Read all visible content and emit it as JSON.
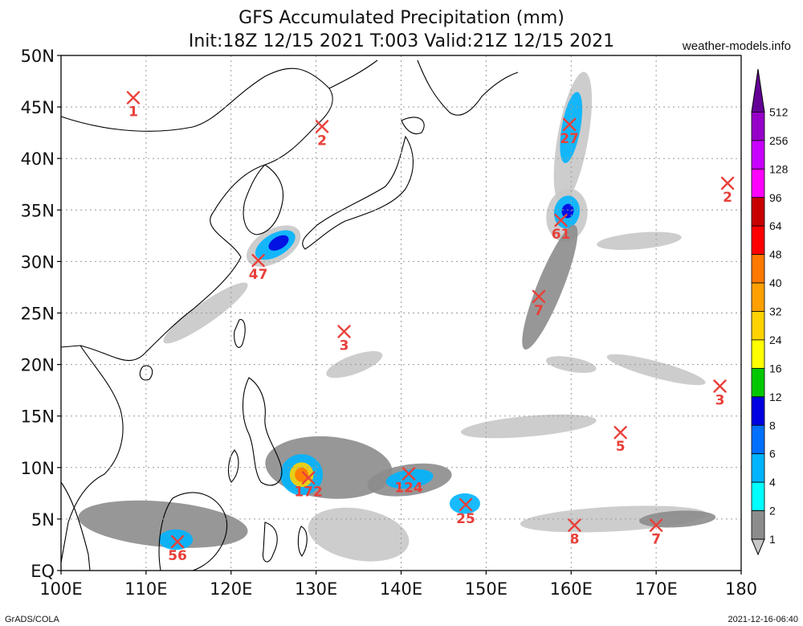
{
  "header": {
    "title": "GFS Accumulated Precipitation (mm)",
    "subtitle": "Init:18Z 12/15 2021 T:003 Valid:21Z 12/15 2021",
    "site": "weather-models.info"
  },
  "footer": {
    "left": "GrADS/COLA",
    "right": "2021-12-16-06:40"
  },
  "map": {
    "lon_range": [
      100,
      180
    ],
    "lat_range": [
      0,
      50
    ],
    "lat_labels": [
      "50N",
      "45N",
      "40N",
      "35N",
      "30N",
      "25N",
      "20N",
      "15N",
      "10N",
      "5N",
      "EQ"
    ],
    "lon_labels": [
      "100E",
      "110E",
      "120E",
      "130E",
      "140E",
      "150E",
      "160E",
      "170E",
      "180"
    ],
    "grid_lon": [
      110,
      120,
      130,
      140,
      150,
      160,
      170
    ],
    "grid_lat": [
      5,
      10,
      15,
      20,
      25,
      30,
      35,
      40,
      45
    ],
    "marker_color": "#e8403a"
  },
  "markers": [
    {
      "lon": 108.5,
      "lat": 45.9,
      "value": "1"
    },
    {
      "lon": 130.7,
      "lat": 43.1,
      "value": "2"
    },
    {
      "lon": 123.2,
      "lat": 30.1,
      "value": "47"
    },
    {
      "lon": 133.3,
      "lat": 23.2,
      "value": "3"
    },
    {
      "lon": 159.8,
      "lat": 43.3,
      "value": "27"
    },
    {
      "lon": 158.8,
      "lat": 34.0,
      "value": "61"
    },
    {
      "lon": 156.2,
      "lat": 26.6,
      "value": "7"
    },
    {
      "lon": 178.4,
      "lat": 37.6,
      "value": "2"
    },
    {
      "lon": 177.5,
      "lat": 17.9,
      "value": "3"
    },
    {
      "lon": 165.8,
      "lat": 13.4,
      "value": "5"
    },
    {
      "lon": 129.1,
      "lat": 9.0,
      "value": "172"
    },
    {
      "lon": 140.9,
      "lat": 9.4,
      "value": "124"
    },
    {
      "lon": 147.6,
      "lat": 6.4,
      "value": "25"
    },
    {
      "lon": 160.4,
      "lat": 4.4,
      "value": "8"
    },
    {
      "lon": 170.0,
      "lat": 4.4,
      "value": "7"
    },
    {
      "lon": 113.7,
      "lat": 2.8,
      "value": "56"
    }
  ],
  "colorbar": {
    "colors": [
      "#c8c8c8",
      "#8c8c8c",
      "#00ffff",
      "#00b4ff",
      "#0070ff",
      "#0000e0",
      "#00c800",
      "#ffff00",
      "#ffd200",
      "#ffa000",
      "#ff7800",
      "#ff0000",
      "#c80000",
      "#ff00ff",
      "#c800ff",
      "#9600c8",
      "#640096"
    ],
    "labels": [
      "1",
      "2",
      "4",
      "6",
      "8",
      "12",
      "16",
      "24",
      "32",
      "40",
      "48",
      "64",
      "96",
      "128",
      "256",
      "512"
    ]
  },
  "precip": [
    {
      "lon": 125.0,
      "lat": 31.5,
      "rx": 3.5,
      "ry": 1.6,
      "rot": -30,
      "level": 0
    },
    {
      "lon": 125.2,
      "lat": 31.6,
      "rx": 2.6,
      "ry": 1.1,
      "rot": -30,
      "level": 3
    },
    {
      "lon": 125.6,
      "lat": 31.8,
      "rx": 1.3,
      "ry": 0.6,
      "rot": -30,
      "level": 5
    },
    {
      "lon": 160.2,
      "lat": 42.0,
      "rx": 1.8,
      "ry": 6.5,
      "rot": 10,
      "level": 0
    },
    {
      "lon": 160.0,
      "lat": 43.0,
      "rx": 1.1,
      "ry": 3.5,
      "rot": 10,
      "level": 3
    },
    {
      "lon": 159.5,
      "lat": 34.5,
      "rx": 2.4,
      "ry": 2.6,
      "rot": 10,
      "level": 0
    },
    {
      "lon": 159.5,
      "lat": 34.8,
      "rx": 1.5,
      "ry": 1.6,
      "rot": 10,
      "level": 3
    },
    {
      "lon": 159.6,
      "lat": 34.9,
      "rx": 0.7,
      "ry": 0.7,
      "rot": 10,
      "level": 5
    },
    {
      "lon": 157.5,
      "lat": 27.5,
      "rx": 1.5,
      "ry": 6.5,
      "rot": 22,
      "level": 1
    },
    {
      "lon": 131.5,
      "lat": 10.0,
      "rx": 7.5,
      "ry": 3.0,
      "rot": 5,
      "level": 1
    },
    {
      "lon": 128.3,
      "lat": 9.3,
      "rx": 2.5,
      "ry": 2.0,
      "rot": 0,
      "level": 3
    },
    {
      "lon": 128.3,
      "lat": 9.3,
      "rx": 1.4,
      "ry": 1.2,
      "rot": 0,
      "level": 8
    },
    {
      "lon": 128.3,
      "lat": 9.3,
      "rx": 0.8,
      "ry": 0.7,
      "rot": 0,
      "level": 10
    },
    {
      "lon": 141.0,
      "lat": 8.8,
      "rx": 5.0,
      "ry": 1.5,
      "rot": -8,
      "level": 1
    },
    {
      "lon": 141.0,
      "lat": 8.9,
      "rx": 2.8,
      "ry": 0.9,
      "rot": -8,
      "level": 3
    },
    {
      "lon": 147.5,
      "lat": 6.5,
      "rx": 1.8,
      "ry": 1.0,
      "rot": 0,
      "level": 3
    },
    {
      "lon": 112.0,
      "lat": 4.5,
      "rx": 10.0,
      "ry": 2.2,
      "rot": 5,
      "level": 1
    },
    {
      "lon": 113.5,
      "lat": 3.0,
      "rx": 2.0,
      "ry": 1.0,
      "rot": 0,
      "level": 3
    },
    {
      "lon": 165.0,
      "lat": 5.0,
      "rx": 11.0,
      "ry": 1.2,
      "rot": -3,
      "level": 0
    },
    {
      "lon": 172.5,
      "lat": 5.0,
      "rx": 4.5,
      "ry": 0.8,
      "rot": -3,
      "level": 1
    },
    {
      "lon": 135.0,
      "lat": 3.5,
      "rx": 6.0,
      "ry": 2.5,
      "rot": 10,
      "level": 0
    },
    {
      "lon": 155.0,
      "lat": 14.0,
      "rx": 8.0,
      "ry": 1.0,
      "rot": -5,
      "level": 0
    },
    {
      "lon": 168.0,
      "lat": 32.0,
      "rx": 5.0,
      "ry": 0.8,
      "rot": -5,
      "level": 0
    },
    {
      "lon": 134.5,
      "lat": 20.0,
      "rx": 3.5,
      "ry": 0.9,
      "rot": -20,
      "level": 0
    },
    {
      "lon": 117.0,
      "lat": 25.0,
      "rx": 6.0,
      "ry": 1.0,
      "rot": -35,
      "level": 0
    },
    {
      "lon": 170.0,
      "lat": 19.5,
      "rx": 6.0,
      "ry": 0.8,
      "rot": 15,
      "level": 0
    },
    {
      "lon": 160.0,
      "lat": 20.0,
      "rx": 3.0,
      "ry": 0.7,
      "rot": 10,
      "level": 0
    }
  ]
}
